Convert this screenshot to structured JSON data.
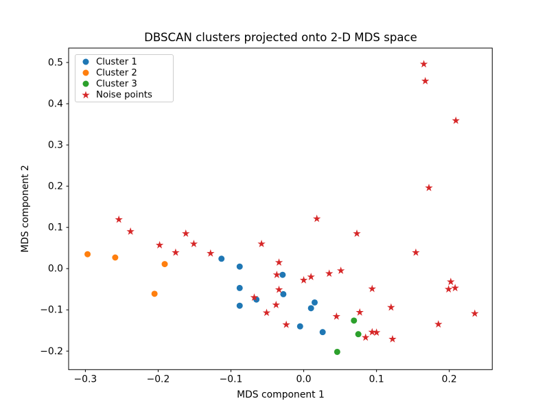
{
  "chart_data": {
    "type": "scatter",
    "title": "DBSCAN clusters projected onto 2-D MDS space",
    "xlabel": "MDS component 1",
    "ylabel": "MDS component 2",
    "xlim": [
      -0.323,
      0.259
    ],
    "ylim": [
      -0.245,
      0.535
    ],
    "grid": false,
    "legend_position": "upper left",
    "xticks": {
      "values": [
        -0.3,
        -0.2,
        -0.1,
        0.0,
        0.1,
        0.2
      ],
      "labels": [
        "−0.3",
        "−0.2",
        "−0.1",
        "0.0",
        "0.1",
        "0.2"
      ]
    },
    "yticks": {
      "values": [
        0.5,
        0.4,
        0.3,
        0.2,
        0.1,
        0.0,
        -0.1,
        -0.2
      ],
      "labels": [
        "0.5",
        "0.4",
        "0.3",
        "0.2",
        "0.1",
        "0.0",
        "−0.1",
        "−0.2"
      ]
    },
    "series": [
      {
        "name": "Cluster 1",
        "marker": "circle",
        "color": "#1f77b4",
        "points": [
          [
            -0.113,
            0.024
          ],
          [
            -0.088,
            0.005
          ],
          [
            -0.088,
            -0.047
          ],
          [
            -0.088,
            -0.09
          ],
          [
            -0.065,
            -0.075
          ],
          [
            -0.029,
            -0.015
          ],
          [
            -0.028,
            -0.062
          ],
          [
            -0.005,
            -0.14
          ],
          [
            0.01,
            -0.096
          ],
          [
            0.015,
            -0.082
          ],
          [
            0.026,
            -0.154
          ]
        ]
      },
      {
        "name": "Cluster 2",
        "marker": "circle",
        "color": "#ff7f0e",
        "points": [
          [
            -0.297,
            0.035
          ],
          [
            -0.259,
            0.027
          ],
          [
            -0.205,
            -0.061
          ],
          [
            -0.191,
            0.011
          ]
        ]
      },
      {
        "name": "Cluster 3",
        "marker": "circle",
        "color": "#2ca02c",
        "points": [
          [
            0.046,
            -0.202
          ],
          [
            0.069,
            -0.126
          ],
          [
            0.075,
            -0.159
          ]
        ]
      },
      {
        "name": "Noise points",
        "marker": "star",
        "color": "#d62728",
        "points": [
          [
            -0.254,
            0.119
          ],
          [
            -0.238,
            0.09
          ],
          [
            -0.198,
            0.057
          ],
          [
            -0.176,
            0.039
          ],
          [
            -0.162,
            0.085
          ],
          [
            -0.151,
            0.06
          ],
          [
            -0.128,
            0.037
          ],
          [
            -0.068,
            -0.07
          ],
          [
            -0.058,
            0.06
          ],
          [
            -0.051,
            -0.107
          ],
          [
            -0.038,
            -0.088
          ],
          [
            -0.037,
            -0.015
          ],
          [
            -0.034,
            0.015
          ],
          [
            -0.034,
            -0.051
          ],
          [
            -0.024,
            -0.136
          ],
          [
            0.0,
            -0.028
          ],
          [
            0.01,
            -0.02
          ],
          [
            0.018,
            0.121
          ],
          [
            0.035,
            -0.012
          ],
          [
            0.045,
            -0.116
          ],
          [
            0.051,
            -0.005
          ],
          [
            0.073,
            0.085
          ],
          [
            0.077,
            -0.106
          ],
          [
            0.085,
            -0.167
          ],
          [
            0.094,
            -0.049
          ],
          [
            0.094,
            -0.154
          ],
          [
            0.1,
            -0.155
          ],
          [
            0.12,
            -0.094
          ],
          [
            0.122,
            -0.171
          ],
          [
            0.154,
            0.039
          ],
          [
            0.165,
            0.496
          ],
          [
            0.167,
            0.455
          ],
          [
            0.172,
            0.196
          ],
          [
            0.185,
            -0.135
          ],
          [
            0.199,
            -0.05
          ],
          [
            0.202,
            -0.032
          ],
          [
            0.208,
            -0.047
          ],
          [
            0.209,
            0.359
          ],
          [
            0.235,
            -0.109
          ]
        ]
      }
    ]
  }
}
